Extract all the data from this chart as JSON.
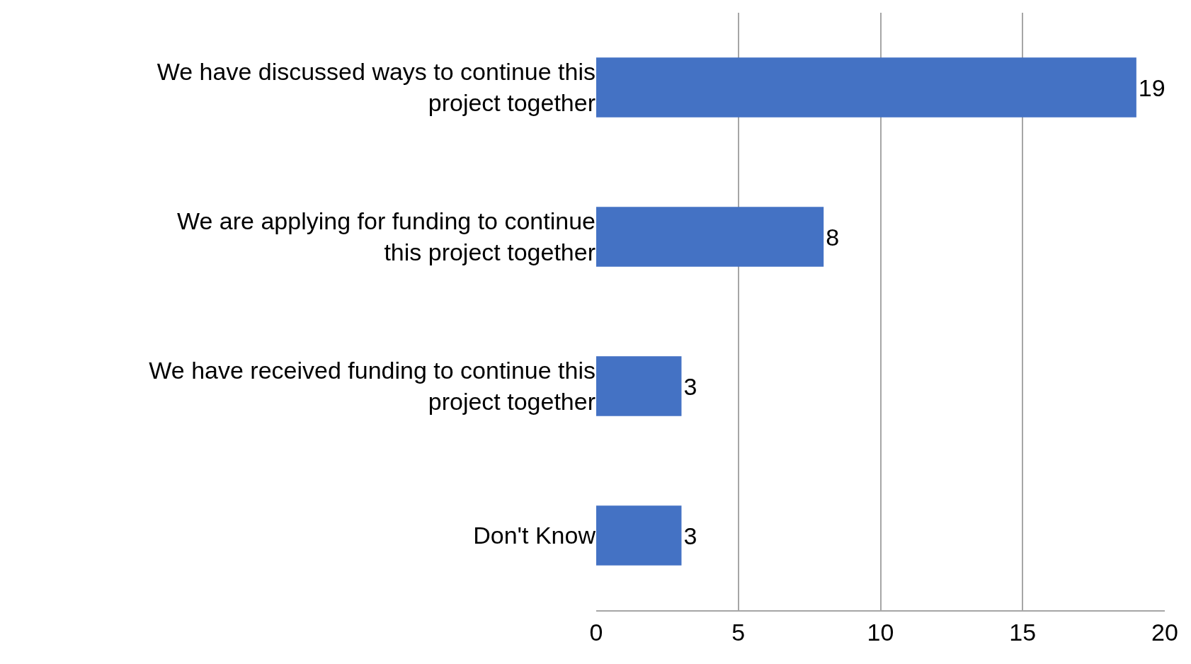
{
  "chart_data": {
    "type": "bar",
    "orientation": "horizontal",
    "categories": [
      "We have discussed ways to continue this project together",
      "We are applying for funding to continue this project together",
      "We have received funding to continue this project together",
      "Don't Know"
    ],
    "values": [
      19,
      8,
      3,
      3
    ],
    "color": "#4472c4",
    "data_labels": true,
    "xlim": [
      0,
      20
    ],
    "xticks": [
      0,
      5,
      10,
      15,
      20
    ],
    "grid": "x",
    "legend": false
  }
}
